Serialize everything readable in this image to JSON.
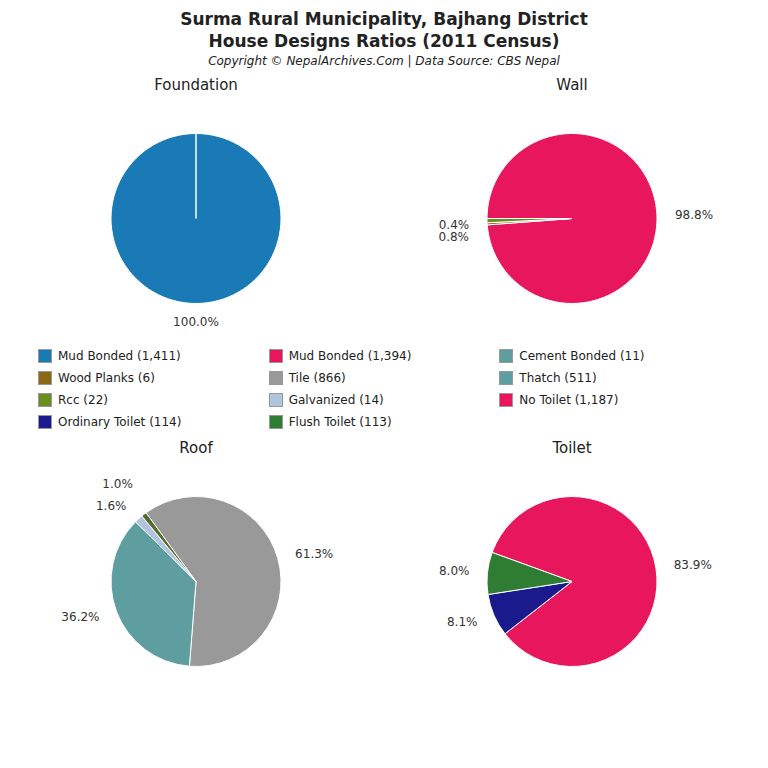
{
  "title": "Surma Rural Municipality, Bajhang District",
  "subtitle": "House Designs Ratios (2011 Census)",
  "annotations": [
    "Copyright © NepalArchives.Com | Data Source: CBS Nepal"
  ],
  "chart_data": [
    {
      "type": "pie",
      "title": "Foundation",
      "values": [
        100.0
      ],
      "value_labels": [
        "100.0%"
      ],
      "colors": [
        "#1a7ab5"
      ],
      "data_labels": true
    },
    {
      "type": "pie",
      "title": "Wall",
      "values": [
        98.8,
        0.4,
        0.8
      ],
      "value_labels": [
        "98.8%",
        "0.4%",
        "0.8%"
      ],
      "colors": [
        "#e8175d",
        "#8B6914",
        "#6b8e23"
      ],
      "data_labels": true
    },
    {
      "type": "pie",
      "title": "Roof",
      "values": [
        61.3,
        36.2,
        1.6,
        1.0
      ],
      "value_labels": [
        "61.3%",
        "36.2%",
        "1.6%",
        "1.0%"
      ],
      "colors": [
        "#999999",
        "#5f9ea0",
        "#b0c4de",
        "#556b2f"
      ],
      "data_labels": true
    },
    {
      "type": "pie",
      "title": "Toilet",
      "values": [
        83.9,
        8.1,
        8.0
      ],
      "value_labels": [
        "83.9%",
        "8.1%",
        "8.0%"
      ],
      "colors": [
        "#e8175d",
        "#1a1a8c",
        "#2e7d32"
      ],
      "data_labels": true
    }
  ],
  "legend_entries": [
    {
      "name": "Mud Bonded (1,411)",
      "color": "#1a7ab5"
    },
    {
      "name": "Mud Bonded (1,394)",
      "color": "#e8175d"
    },
    {
      "name": "Cement Bonded (11)",
      "color": "#5f9ea0"
    },
    {
      "name": "Wood Planks (6)",
      "color": "#8B6914"
    },
    {
      "name": "Tile (866)",
      "color": "#999999"
    },
    {
      "name": "Thatch (511)",
      "color": "#5f9ea0"
    },
    {
      "name": "Rcc (22)",
      "color": "#6b8e23"
    },
    {
      "name": "Galvanized (14)",
      "color": "#b0c4de"
    },
    {
      "name": "No Toilet (1,187)",
      "color": "#e8175d"
    },
    {
      "name": "Ordinary Toilet (114)",
      "color": "#1a1a8c"
    },
    {
      "name": "Flush Toilet (113)",
      "color": "#2e7d32"
    }
  ]
}
